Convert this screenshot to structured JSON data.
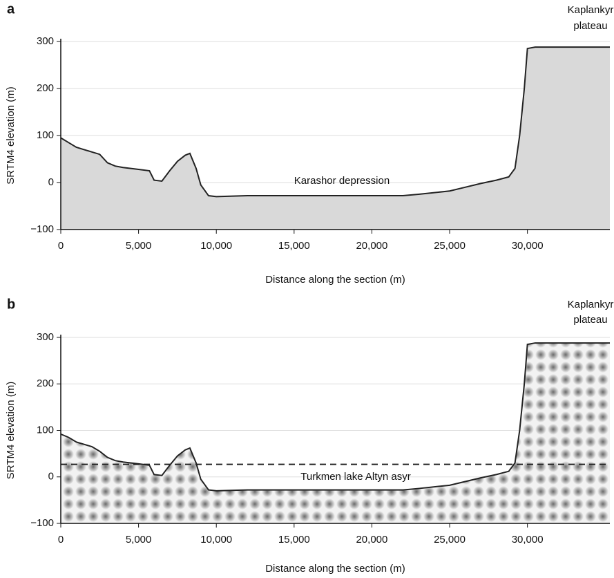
{
  "chart_data": [
    {
      "type": "area",
      "panel_label": "a",
      "x_label": "Distance along the section (m)",
      "y_label": "SRTM4 elevation (m)",
      "annotations": [
        "Karashor depression",
        "Kaplankyr",
        "plateau"
      ],
      "x": [
        0,
        500,
        1000,
        1500,
        2000,
        2500,
        3000,
        3500,
        4000,
        5000,
        5700,
        6000,
        6500,
        7000,
        7500,
        8000,
        8300,
        8700,
        9000,
        9500,
        10000,
        12000,
        15000,
        18000,
        20000,
        22000,
        23000,
        25000,
        26000,
        27000,
        28000,
        28800,
        29200,
        29500,
        29800,
        30000,
        30500,
        34000,
        35300
      ],
      "values": [
        95,
        85,
        75,
        70,
        65,
        60,
        42,
        35,
        32,
        28,
        25,
        5,
        3,
        25,
        45,
        58,
        62,
        30,
        -5,
        -28,
        -30,
        -28,
        -28,
        -28,
        -28,
        -28,
        -25,
        -18,
        -10,
        -2,
        5,
        12,
        30,
        100,
        200,
        285,
        288,
        288,
        288
      ],
      "color": "#d9d9d9",
      "xlim": [
        0,
        35300
      ],
      "ylim": [
        -100,
        300
      ],
      "xticks": [
        0,
        {
          "value": 5000,
          "label": "5,000"
        },
        {
          "value": 10000,
          "label": "10,000"
        },
        {
          "value": 15000,
          "label": "15,000"
        },
        {
          "value": 20000,
          "label": "20,000"
        },
        {
          "value": 25000,
          "label": "25,000"
        },
        {
          "value": 30000,
          "label": "30,000"
        }
      ],
      "yticks": [
        {
          "value": -100,
          "label": "−100"
        },
        0,
        100,
        200,
        300
      ],
      "grid": true
    },
    {
      "type": "area",
      "panel_label": "b",
      "x_label": "Distance along the section (m)",
      "y_label": "SRTM4 elevation (m)",
      "annotations": [
        "Turkmen lake Altyn asyr",
        "Kaplankyr",
        "plateau"
      ],
      "lake_level": 27,
      "x": [
        0,
        500,
        1000,
        1500,
        2000,
        2500,
        3000,
        3500,
        4000,
        5000,
        5700,
        6000,
        6500,
        7000,
        7500,
        8000,
        8300,
        8700,
        9000,
        9500,
        10000,
        12000,
        15000,
        18000,
        20000,
        22000,
        23000,
        25000,
        26000,
        27000,
        28000,
        28800,
        29200,
        29500,
        29800,
        30000,
        30500,
        34000,
        35300
      ],
      "values": [
        92,
        85,
        75,
        70,
        65,
        55,
        42,
        35,
        32,
        28,
        25,
        5,
        3,
        25,
        45,
        58,
        62,
        30,
        -5,
        -28,
        -30,
        -28,
        -28,
        -28,
        -28,
        -28,
        -25,
        -18,
        -10,
        -2,
        5,
        12,
        30,
        100,
        200,
        285,
        288,
        288,
        288
      ],
      "color": "#9a9a9a",
      "xlim": [
        0,
        35300
      ],
      "ylim": [
        -100,
        300
      ],
      "xticks": [
        0,
        {
          "value": 5000,
          "label": "5,000"
        },
        {
          "value": 10000,
          "label": "10,000"
        },
        {
          "value": 15000,
          "label": "15,000"
        },
        {
          "value": 20000,
          "label": "20,000"
        },
        {
          "value": 25000,
          "label": "25,000"
        },
        {
          "value": 30000,
          "label": "30,000"
        }
      ],
      "yticks": [
        {
          "value": -100,
          "label": "−100"
        },
        0,
        100,
        200,
        300
      ],
      "grid": true
    }
  ]
}
